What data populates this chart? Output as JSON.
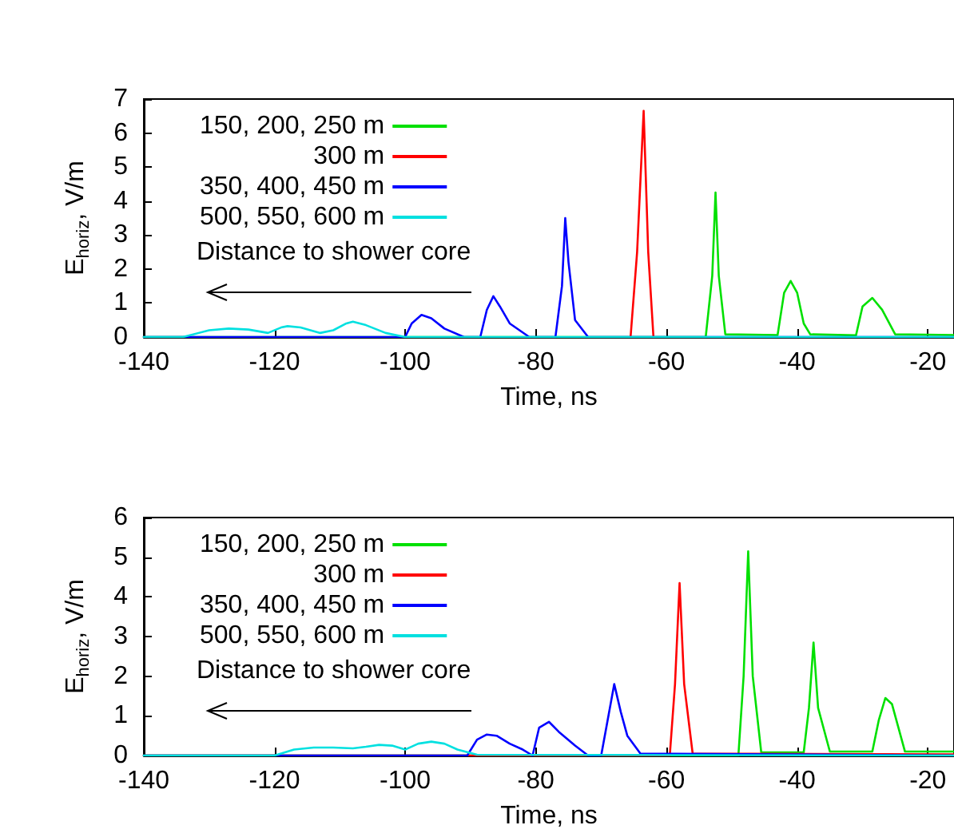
{
  "chart_data": [
    {
      "type": "line",
      "xlabel": "Time, ns",
      "ylabel": "E$_{horiz}$, V/m",
      "xlim": [
        -140,
        -16
      ],
      "ylim": [
        0,
        7
      ],
      "xticks": [
        -140,
        -120,
        -100,
        -80,
        -60,
        -40,
        -20
      ],
      "yticks": [
        0,
        1,
        2,
        3,
        4,
        5,
        6,
        7
      ],
      "legend": "top left",
      "marker": "none",
      "grid": false,
      "annotations": [
        "Distance to shower core"
      ],
      "series": [
        {
          "name": "150, 200, 250 m",
          "color": "#00e000",
          "x": [
            -140,
            -54,
            -53,
            -52.5,
            -52,
            -51,
            -43,
            -42,
            -41,
            -40,
            -39,
            -38,
            -31,
            -30,
            -28.5,
            -27,
            -25,
            -16
          ],
          "values": [
            0,
            0,
            1.8,
            4.25,
            1.8,
            0.08,
            0.06,
            1.3,
            1.65,
            1.3,
            0.4,
            0.08,
            0.05,
            0.9,
            1.15,
            0.8,
            0.08,
            0.06
          ]
        },
        {
          "name": "300 m",
          "color": "#ff0000",
          "x": [
            -65.5,
            -64.5,
            -63.5,
            -62.8,
            -62
          ],
          "values": [
            0,
            2.5,
            6.65,
            2.5,
            0
          ]
        },
        {
          "name": "350, 400, 450 m",
          "color": "#0000ff",
          "x": [
            -140,
            -100,
            -99,
            -97.5,
            -96,
            -94,
            -91,
            -88.5,
            -87.5,
            -86.5,
            -85.5,
            -84,
            -81,
            -77,
            -76,
            -75.5,
            -75,
            -74,
            -72,
            -16
          ],
          "values": [
            0,
            0,
            0.4,
            0.65,
            0.55,
            0.25,
            0,
            0,
            0.8,
            1.2,
            0.9,
            0.4,
            0,
            0,
            1.5,
            3.5,
            2.2,
            0.5,
            0,
            0
          ]
        },
        {
          "name": "500, 550, 600 m",
          "color": "#00e0e0",
          "x": [
            -140,
            -134,
            -130,
            -127,
            -124,
            -121,
            -119,
            -118,
            -116,
            -113,
            -111,
            -109,
            -108,
            -106,
            -103,
            -100,
            -16
          ],
          "values": [
            0,
            0,
            0.2,
            0.25,
            0.22,
            0.12,
            0.28,
            0.32,
            0.28,
            0.12,
            0.2,
            0.4,
            0.45,
            0.35,
            0.12,
            0,
            0
          ]
        }
      ]
    },
    {
      "type": "line",
      "xlabel": "Time, ns",
      "ylabel": "E$_{horiz}$, V/m",
      "xlim": [
        -140,
        -16
      ],
      "ylim": [
        0,
        6
      ],
      "xticks": [
        -140,
        -120,
        -100,
        -80,
        -60,
        -40,
        -20
      ],
      "yticks": [
        0,
        1,
        2,
        3,
        4,
        5,
        6
      ],
      "legend": "top left",
      "marker": "none",
      "grid": false,
      "annotations": [
        "Distance to shower core"
      ],
      "series": [
        {
          "name": "150, 200, 250 m",
          "color": "#00e000",
          "x": [
            -140,
            -49,
            -48.2,
            -47.5,
            -46.8,
            -45.5,
            -39,
            -38.2,
            -37.5,
            -36.8,
            -35,
            -28.5,
            -27.5,
            -26.5,
            -25.5,
            -23.5,
            -16
          ],
          "values": [
            0,
            0,
            2,
            5.15,
            2,
            0.08,
            0.08,
            1.2,
            2.85,
            1.2,
            0.1,
            0.1,
            0.9,
            1.45,
            1.3,
            0.1,
            0.1
          ]
        },
        {
          "name": "300 m",
          "color": "#ff0000",
          "x": [
            -140,
            -59.5,
            -58.7,
            -58,
            -57.3,
            -56,
            -16
          ],
          "values": [
            0,
            0,
            1.8,
            4.35,
            1.8,
            0.05,
            0.03
          ]
        },
        {
          "name": "350, 400, 450 m",
          "color": "#0000ff",
          "x": [
            -140,
            -90.5,
            -89,
            -87.5,
            -86,
            -84,
            -82,
            -80.5,
            -79.5,
            -78,
            -76.5,
            -74,
            -72,
            -70,
            -69,
            -68,
            -67,
            -66,
            -64,
            -16
          ],
          "values": [
            0,
            0,
            0.4,
            0.53,
            0.5,
            0.3,
            0.15,
            0,
            0.7,
            0.85,
            0.6,
            0.25,
            0,
            0,
            0.9,
            1.8,
            1.1,
            0.5,
            0.05,
            0
          ]
        },
        {
          "name": "500, 550, 600 m",
          "color": "#00e0e0",
          "x": [
            -140,
            -120,
            -117,
            -114,
            -111,
            -108,
            -106,
            -104,
            -102,
            -100,
            -98,
            -96,
            -94,
            -92,
            -89,
            -16
          ],
          "values": [
            0,
            0,
            0.15,
            0.2,
            0.2,
            0.18,
            0.22,
            0.27,
            0.25,
            0.15,
            0.3,
            0.35,
            0.3,
            0.15,
            0.02,
            0
          ]
        }
      ]
    }
  ]
}
